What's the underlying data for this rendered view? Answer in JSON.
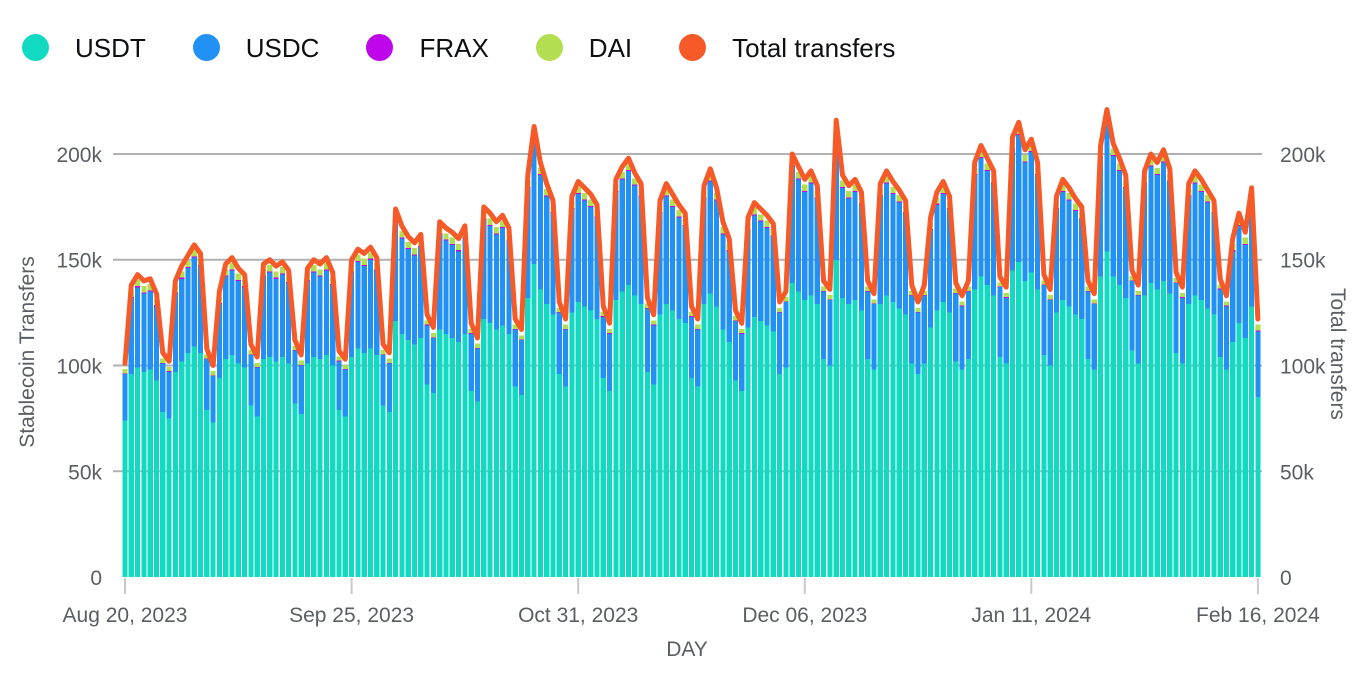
{
  "legend": {
    "items": [
      {
        "label": "USDT",
        "color": "#12dac2"
      },
      {
        "label": "USDC",
        "color": "#2191f5"
      },
      {
        "label": "FRAX",
        "color": "#bf06ea"
      },
      {
        "label": "DAI",
        "color": "#b4de52"
      },
      {
        "label": "Total transfers",
        "color": "#f65a28"
      }
    ]
  },
  "axes": {
    "left": {
      "title": "Stablecoin Transfers",
      "tick_values": [
        0,
        50,
        100,
        150,
        200
      ],
      "tick_labels": [
        "0",
        "50k",
        "100k",
        "150k",
        "200k"
      ]
    },
    "right": {
      "title": "Total transfers",
      "tick_values": [
        0,
        50,
        100,
        150,
        200
      ],
      "tick_labels": [
        "0",
        "50k",
        "100k",
        "150k",
        "200k"
      ]
    },
    "x": {
      "title": "DAY",
      "ticks": [
        {
          "label": "Aug 20, 2023",
          "day_index": 0
        },
        {
          "label": "Sep 25, 2023",
          "day_index": 36
        },
        {
          "label": "Oct 31, 2023",
          "day_index": 72
        },
        {
          "label": "Dec 06, 2023",
          "day_index": 108
        },
        {
          "label": "Jan 11, 2024",
          "day_index": 144
        },
        {
          "label": "Feb 16, 2024",
          "day_index": 180
        }
      ]
    }
  },
  "colors": {
    "grid": "#b1b1b1",
    "x_tick_mark": "#c9c9c9",
    "tick_text": "#5a5e63",
    "legend_text": "#0e0f12",
    "background": "#ffffff"
  },
  "chart_data": {
    "type": "bar",
    "stacked": true,
    "units": "thousands of transfers per day",
    "title": "",
    "xlabel": "DAY",
    "ylabel_left": "Stablecoin Transfers",
    "ylabel_right": "Total transfers",
    "ylim": [
      0,
      220
    ],
    "grid": "horizontal",
    "legend_position": "top-left",
    "x_dates": [
      "2023-08-20",
      "2023-08-21",
      "2023-08-22",
      "2023-08-23",
      "2023-08-24",
      "2023-08-25",
      "2023-08-26",
      "2023-08-27",
      "2023-08-28",
      "2023-08-29",
      "2023-08-30",
      "2023-08-31",
      "2023-09-01",
      "2023-09-02",
      "2023-09-03",
      "2023-09-04",
      "2023-09-05",
      "2023-09-06",
      "2023-09-07",
      "2023-09-08",
      "2023-09-09",
      "2023-09-10",
      "2023-09-11",
      "2023-09-12",
      "2023-09-13",
      "2023-09-14",
      "2023-09-15",
      "2023-09-16",
      "2023-09-17",
      "2023-09-18",
      "2023-09-19",
      "2023-09-20",
      "2023-09-21",
      "2023-09-22",
      "2023-09-23",
      "2023-09-24",
      "2023-09-25",
      "2023-09-26",
      "2023-09-27",
      "2023-09-28",
      "2023-09-29",
      "2023-09-30",
      "2023-10-01",
      "2023-10-02",
      "2023-10-03",
      "2023-10-04",
      "2023-10-05",
      "2023-10-06",
      "2023-10-07",
      "2023-10-08",
      "2023-10-09",
      "2023-10-10",
      "2023-10-11",
      "2023-10-12",
      "2023-10-13",
      "2023-10-14",
      "2023-10-15",
      "2023-10-16",
      "2023-10-17",
      "2023-10-18",
      "2023-10-19",
      "2023-10-20",
      "2023-10-21",
      "2023-10-22",
      "2023-10-23",
      "2023-10-24",
      "2023-10-25",
      "2023-10-26",
      "2023-10-27",
      "2023-10-28",
      "2023-10-29",
      "2023-10-30",
      "2023-10-31",
      "2023-11-01",
      "2023-11-02",
      "2023-11-03",
      "2023-11-04",
      "2023-11-05",
      "2023-11-06",
      "2023-11-07",
      "2023-11-08",
      "2023-11-09",
      "2023-11-10",
      "2023-11-11",
      "2023-11-12",
      "2023-11-13",
      "2023-11-14",
      "2023-11-15",
      "2023-11-16",
      "2023-11-17",
      "2023-11-18",
      "2023-11-19",
      "2023-11-20",
      "2023-11-21",
      "2023-11-22",
      "2023-11-23",
      "2023-11-24",
      "2023-11-25",
      "2023-11-26",
      "2023-11-27",
      "2023-11-28",
      "2023-11-29",
      "2023-11-30",
      "2023-12-01",
      "2023-12-02",
      "2023-12-03",
      "2023-12-04",
      "2023-12-05",
      "2023-12-06",
      "2023-12-07",
      "2023-12-08",
      "2023-12-09",
      "2023-12-10",
      "2023-12-11",
      "2023-12-12",
      "2023-12-13",
      "2023-12-14",
      "2023-12-15",
      "2023-12-16",
      "2023-12-17",
      "2023-12-18",
      "2023-12-19",
      "2023-12-20",
      "2023-12-21",
      "2023-12-22",
      "2023-12-23",
      "2023-12-24",
      "2023-12-25",
      "2023-12-26",
      "2023-12-27",
      "2023-12-28",
      "2023-12-29",
      "2023-12-30",
      "2023-12-31",
      "2024-01-01",
      "2024-01-02",
      "2024-01-03",
      "2024-01-04",
      "2024-01-05",
      "2024-01-06",
      "2024-01-07",
      "2024-01-08",
      "2024-01-09",
      "2024-01-10",
      "2024-01-11",
      "2024-01-12",
      "2024-01-13",
      "2024-01-14",
      "2024-01-15",
      "2024-01-16",
      "2024-01-17",
      "2024-01-18",
      "2024-01-19",
      "2024-01-20",
      "2024-01-21",
      "2024-01-22",
      "2024-01-23",
      "2024-01-24",
      "2024-01-25",
      "2024-01-26",
      "2024-01-27",
      "2024-01-28",
      "2024-01-29",
      "2024-01-30",
      "2024-01-31",
      "2024-02-01",
      "2024-02-02",
      "2024-02-03",
      "2024-02-04",
      "2024-02-05",
      "2024-02-06",
      "2024-02-07",
      "2024-02-08",
      "2024-02-09",
      "2024-02-10",
      "2024-02-11",
      "2024-02-12",
      "2024-02-13",
      "2024-02-14",
      "2024-02-15",
      "2024-02-16"
    ],
    "series": [
      {
        "name": "USDT",
        "render": "bar",
        "color": "#12dac2",
        "values": [
          74,
          96,
          99,
          97,
          98,
          93,
          78,
          75,
          97,
          102,
          106,
          109,
          106,
          79,
          73,
          94,
          103,
          105,
          101,
          99,
          81,
          76,
          103,
          104,
          102,
          104,
          101,
          82,
          77,
          101,
          104,
          103,
          105,
          100,
          79,
          76,
          104,
          108,
          106,
          108,
          105,
          81,
          78,
          121,
          115,
          112,
          110,
          113,
          91,
          87,
          117,
          115,
          113,
          111,
          115,
          88,
          83,
          122,
          120,
          117,
          119,
          115,
          90,
          86,
          132,
          148,
          136,
          129,
          124,
          96,
          90,
          125,
          130,
          128,
          126,
          122,
          94,
          88,
          131,
          135,
          138,
          133,
          129,
          97,
          91,
          124,
          129,
          126,
          122,
          120,
          94,
          90,
          129,
          134,
          128,
          117,
          111,
          93,
          88,
          118,
          123,
          121,
          119,
          116,
          96,
          99,
          139,
          135,
          131,
          133,
          129,
          103,
          100,
          150,
          132,
          129,
          131,
          126,
          103,
          98,
          129,
          133,
          130,
          127,
          124,
          101,
          96,
          101,
          118,
          126,
          130,
          125,
          102,
          98,
          103,
          136,
          142,
          138,
          133,
          104,
          101,
          145,
          149,
          140,
          144,
          136,
          105,
          100,
          125,
          131,
          128,
          124,
          122,
          103,
          98,
          142,
          154,
          142,
          138,
          132,
          107,
          101,
          133,
          139,
          136,
          140,
          134,
          106,
          101,
          129,
          133,
          131,
          127,
          124,
          104,
          98,
          111,
          120,
          113,
          128,
          85
        ]
      },
      {
        "name": "USDC",
        "render": "bar",
        "color": "#2191f5",
        "values": [
          22,
          36,
          38,
          37,
          37,
          35,
          23,
          22,
          37,
          39,
          40,
          42,
          41,
          24,
          22,
          35,
          39,
          40,
          39,
          38,
          24,
          23,
          39,
          40,
          39,
          39,
          38,
          25,
          23,
          39,
          40,
          39,
          40,
          38,
          23,
          22,
          40,
          41,
          41,
          42,
          40,
          24,
          23,
          47,
          45,
          43,
          42,
          43,
          28,
          26,
          45,
          44,
          44,
          43,
          45,
          27,
          25,
          47,
          46,
          45,
          46,
          44,
          27,
          26,
          52,
          59,
          54,
          51,
          48,
          29,
          27,
          49,
          51,
          50,
          49,
          48,
          29,
          27,
          51,
          53,
          54,
          52,
          51,
          30,
          28,
          48,
          51,
          49,
          48,
          46,
          29,
          27,
          50,
          53,
          50,
          45,
          43,
          28,
          27,
          46,
          48,
          47,
          46,
          45,
          29,
          31,
          55,
          53,
          51,
          53,
          50,
          32,
          31,
          60,
          52,
          50,
          51,
          50,
          32,
          31,
          51,
          53,
          51,
          50,
          48,
          32,
          29,
          32,
          46,
          50,
          51,
          49,
          32,
          30,
          32,
          54,
          56,
          54,
          53,
          33,
          31,
          57,
          60,
          56,
          57,
          54,
          33,
          31,
          49,
          51,
          50,
          49,
          47,
          32,
          31,
          56,
          61,
          57,
          54,
          52,
          33,
          32,
          53,
          55,
          54,
          56,
          53,
          33,
          31,
          51,
          53,
          51,
          50,
          48,
          32,
          30,
          43,
          46,
          44,
          50,
          31
        ]
      },
      {
        "name": "FRAX",
        "render": "bar",
        "color": "#bf06ea",
        "values": [
          0.3,
          0.5,
          0.5,
          0.5,
          0.5,
          0.5,
          0.3,
          0.3,
          0.5,
          0.5,
          0.5,
          0.5,
          0.5,
          0.3,
          0.3,
          0.5,
          0.5,
          0.5,
          0.5,
          0.5,
          0.3,
          0.3,
          0.5,
          0.5,
          0.5,
          0.5,
          0.5,
          0.3,
          0.3,
          0.5,
          0.5,
          0.5,
          0.5,
          0.5,
          0.3,
          0.3,
          0.5,
          0.5,
          0.5,
          0.5,
          0.5,
          0.3,
          0.3,
          0.5,
          0.5,
          0.5,
          0.5,
          0.5,
          0.3,
          0.3,
          0.5,
          0.5,
          0.5,
          0.5,
          0.5,
          0.3,
          0.3,
          0.5,
          0.5,
          0.5,
          0.5,
          0.5,
          0.3,
          0.3,
          0.5,
          0.5,
          0.5,
          0.5,
          0.5,
          0.3,
          0.3,
          0.5,
          0.5,
          0.5,
          0.5,
          0.5,
          0.3,
          0.3,
          0.5,
          0.5,
          0.5,
          0.5,
          0.5,
          0.3,
          0.3,
          0.5,
          0.5,
          0.5,
          0.5,
          0.5,
          0.3,
          0.3,
          0.5,
          0.5,
          0.5,
          0.5,
          0.5,
          0.3,
          0.3,
          0.5,
          0.5,
          0.5,
          0.5,
          0.5,
          0.3,
          0.3,
          0.5,
          0.5,
          0.5,
          0.5,
          0.5,
          0.3,
          0.3,
          0.5,
          0.5,
          0.5,
          0.5,
          0.5,
          0.3,
          0.3,
          0.5,
          0.5,
          0.5,
          0.5,
          0.5,
          0.3,
          0.3,
          0.3,
          0.5,
          0.5,
          0.5,
          0.5,
          0.3,
          0.3,
          0.3,
          0.5,
          0.5,
          0.5,
          0.5,
          0.3,
          0.3,
          0.5,
          0.5,
          0.5,
          0.5,
          0.5,
          0.3,
          0.3,
          0.5,
          0.5,
          0.5,
          0.5,
          0.5,
          0.3,
          0.3,
          0.5,
          0.5,
          0.5,
          0.5,
          0.5,
          0.3,
          0.3,
          0.5,
          0.5,
          0.5,
          0.5,
          0.5,
          0.3,
          0.3,
          0.5,
          0.5,
          0.5,
          0.5,
          0.5,
          0.3,
          0.3,
          0.5,
          0.5,
          0.5,
          0.5,
          0.5
        ]
      },
      {
        "name": "DAI",
        "render": "bar",
        "color": "#b4de52",
        "values": [
          2,
          3,
          3,
          3,
          3,
          3,
          2,
          2,
          3,
          3,
          3,
          3,
          3,
          2,
          2,
          3,
          3,
          3,
          3,
          3,
          2,
          2,
          3,
          3,
          3,
          3,
          3,
          2,
          2,
          3,
          3,
          3,
          3,
          3,
          2,
          2,
          3,
          3,
          3,
          3,
          3,
          2,
          2,
          3,
          3,
          3,
          3,
          3,
          2,
          2,
          3,
          3,
          3,
          3,
          3,
          2,
          2,
          3,
          3,
          3,
          3,
          3,
          2,
          2,
          3,
          3,
          3,
          3,
          3,
          2,
          2,
          3,
          3,
          3,
          3,
          3,
          2,
          2,
          3,
          3,
          3,
          3,
          3,
          2,
          2,
          3,
          3,
          3,
          3,
          3,
          2,
          2,
          3,
          3,
          3,
          3,
          3,
          2,
          2,
          3,
          3,
          3,
          3,
          3,
          2,
          2,
          3,
          3,
          3,
          3,
          3,
          2,
          2,
          3,
          3,
          3,
          3,
          3,
          2,
          2,
          3,
          3,
          3,
          3,
          3,
          2,
          2,
          2,
          3,
          3,
          3,
          3,
          2,
          2,
          2,
          3,
          3,
          3,
          3,
          2,
          2,
          3,
          3,
          3,
          3,
          3,
          2,
          2,
          3,
          3,
          3,
          3,
          3,
          2,
          2,
          3,
          3,
          3,
          3,
          3,
          2,
          2,
          3,
          3,
          3,
          3,
          3,
          2,
          2,
          3,
          3,
          3,
          3,
          3,
          2,
          2,
          3,
          3,
          3,
          3,
          3
        ]
      },
      {
        "name": "Total transfers",
        "render": "line",
        "color": "#f65a28",
        "values": [
          101,
          138,
          143,
          140,
          141,
          134,
          106,
          102,
          140,
          147,
          152,
          157,
          153,
          108,
          100,
          135,
          148,
          151,
          146,
          143,
          110,
          104,
          148,
          150,
          147,
          149,
          145,
          112,
          105,
          146,
          150,
          148,
          151,
          144,
          107,
          103,
          150,
          155,
          153,
          156,
          151,
          110,
          106,
          174,
          166,
          161,
          158,
          162,
          124,
          118,
          168,
          165,
          163,
          160,
          166,
          120,
          113,
          175,
          172,
          168,
          171,
          165,
          122,
          117,
          190,
          213,
          196,
          186,
          178,
          130,
          122,
          180,
          187,
          184,
          181,
          176,
          128,
          120,
          188,
          194,
          198,
          191,
          186,
          132,
          124,
          178,
          186,
          181,
          176,
          172,
          128,
          122,
          185,
          193,
          184,
          168,
          160,
          126,
          120,
          170,
          177,
          174,
          171,
          167,
          130,
          135,
          200,
          194,
          188,
          192,
          185,
          140,
          136,
          216,
          190,
          185,
          188,
          182,
          140,
          134,
          186,
          192,
          187,
          183,
          178,
          138,
          130,
          138,
          170,
          182,
          187,
          180,
          139,
          133,
          140,
          196,
          204,
          198,
          192,
          142,
          137,
          208,
          215,
          202,
          207,
          196,
          143,
          136,
          180,
          188,
          184,
          179,
          175,
          140,
          134,
          204,
          221,
          205,
          198,
          190,
          145,
          138,
          192,
          200,
          196,
          202,
          193,
          144,
          137,
          186,
          192,
          188,
          183,
          178,
          141,
          133,
          160,
          172,
          163,
          184,
          122
        ]
      }
    ]
  }
}
